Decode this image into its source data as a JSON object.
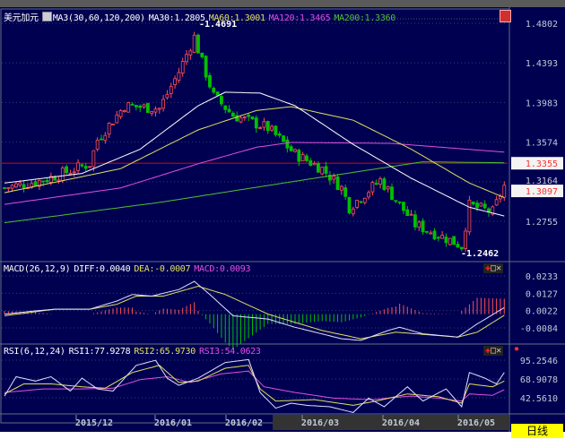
{
  "symbol": "美元加元",
  "ma_header": {
    "label": "MA3(30,60,120,200)",
    "ma30": "MA30:1.2805",
    "ma60": "MA60:1.3001",
    "ma120": "MA120:1.3465",
    "ma200": "MA200:1.3360"
  },
  "macd_header": {
    "label": "MACD(26,12,9)",
    "diff": "DIFF:0.0040",
    "dea": "DEA:-0.0007",
    "macd": "MACD:0.0093"
  },
  "rsi_header": {
    "label": "RSI(6,12,24)",
    "rsi1": "RSI1:77.9278",
    "rsi2": "RSI2:65.9730",
    "rsi3": "RSI3:54.0623"
  },
  "price_axis": [
    "1.4802",
    "1.4393",
    "1.3983",
    "1.3574",
    "1.3164",
    "1.2755"
  ],
  "price_ticks": [
    1.4802,
    1.4393,
    1.3983,
    1.3574,
    1.3164,
    1.2755
  ],
  "price_tags": {
    "reference": "1.3355",
    "last": "1.3097"
  },
  "high_label": "1.4691",
  "low_label": "1.2462",
  "macd_axis": [
    "0.0233",
    "0.0127",
    "0.0022",
    "-0.0084"
  ],
  "macd_ticks": [
    0.0233,
    0.0127,
    0.0022,
    -0.0084
  ],
  "rsi_axis": [
    "95.2546",
    "68.9078",
    "42.5610"
  ],
  "rsi_ticks": [
    95.2546,
    68.9078,
    42.561
  ],
  "date_labels": [
    "2015/12",
    "2016/01",
    "2016/02",
    "2016/03",
    "2016/04",
    "2016/05"
  ],
  "timeframe": "日线",
  "colors": {
    "up": "#ff5050",
    "down": "#00c000",
    "ma30": "#ffffff",
    "ma60": "#e0e060",
    "ma120": "#e050e0",
    "ma200": "#50c030",
    "reference_line": "#c00000"
  },
  "chart_data": {
    "type": "candlestick",
    "bars": 130,
    "price_path": [
      [
        0,
        1.31
      ],
      [
        10,
        1.318
      ],
      [
        22,
        1.335
      ],
      [
        24,
        1.36
      ],
      [
        31,
        1.395
      ],
      [
        40,
        1.392
      ],
      [
        45,
        1.43
      ],
      [
        49,
        1.466
      ],
      [
        51,
        1.44
      ],
      [
        54,
        1.405
      ],
      [
        59,
        1.385
      ],
      [
        68,
        1.372
      ],
      [
        75,
        1.345
      ],
      [
        82,
        1.33
      ],
      [
        87,
        1.31
      ],
      [
        89,
        1.29
      ],
      [
        97,
        1.318
      ],
      [
        106,
        1.272
      ],
      [
        115,
        1.256
      ],
      [
        118,
        1.25
      ],
      [
        120,
        1.292
      ],
      [
        126,
        1.285
      ],
      [
        129,
        1.312
      ]
    ],
    "ma30": [
      [
        0,
        1.315
      ],
      [
        20,
        1.325
      ],
      [
        35,
        1.35
      ],
      [
        50,
        1.395
      ],
      [
        57,
        1.409
      ],
      [
        66,
        1.408
      ],
      [
        75,
        1.395
      ],
      [
        90,
        1.355
      ],
      [
        105,
        1.32
      ],
      [
        120,
        1.29
      ],
      [
        129,
        1.281
      ]
    ],
    "ma60": [
      [
        0,
        1.305
      ],
      [
        30,
        1.33
      ],
      [
        50,
        1.37
      ],
      [
        65,
        1.39
      ],
      [
        74,
        1.394
      ],
      [
        90,
        1.38
      ],
      [
        105,
        1.35
      ],
      [
        120,
        1.315
      ],
      [
        129,
        1.3
      ]
    ],
    "ma120": [
      [
        0,
        1.293
      ],
      [
        30,
        1.31
      ],
      [
        50,
        1.335
      ],
      [
        65,
        1.352
      ],
      [
        74,
        1.357
      ],
      [
        100,
        1.356
      ],
      [
        129,
        1.347
      ]
    ],
    "ma200": [
      [
        0,
        1.274
      ],
      [
        40,
        1.295
      ],
      [
        80,
        1.32
      ],
      [
        108,
        1.337
      ],
      [
        129,
        1.336
      ]
    ],
    "macd_diff": [
      [
        0,
        0.0
      ],
      [
        8,
        0.002
      ],
      [
        13,
        0.003
      ],
      [
        22,
        0.003
      ],
      [
        29,
        0.008
      ],
      [
        33,
        0.012
      ],
      [
        38,
        0.011
      ],
      [
        45,
        0.015
      ],
      [
        49,
        0.02
      ],
      [
        53,
        0.012
      ],
      [
        59,
        -0.001
      ],
      [
        68,
        -0.003
      ],
      [
        75,
        -0.008
      ],
      [
        87,
        -0.015
      ],
      [
        92,
        -0.016
      ],
      [
        99,
        -0.01
      ],
      [
        102,
        -0.008
      ],
      [
        108,
        -0.012
      ],
      [
        117,
        -0.014
      ],
      [
        122,
        -0.006
      ],
      [
        129,
        0.004
      ]
    ],
    "macd_dea": [
      [
        0,
        -0.001
      ],
      [
        13,
        0.003
      ],
      [
        22,
        0.003
      ],
      [
        29,
        0.006
      ],
      [
        34,
        0.011
      ],
      [
        41,
        0.011
      ],
      [
        50,
        0.017
      ],
      [
        57,
        0.012
      ],
      [
        68,
        0.0
      ],
      [
        82,
        -0.01
      ],
      [
        92,
        -0.015
      ],
      [
        101,
        -0.011
      ],
      [
        117,
        -0.014
      ],
      [
        122,
        -0.011
      ],
      [
        129,
        -0.0007
      ]
    ],
    "rsi1": [
      [
        0,
        45
      ],
      [
        3,
        72
      ],
      [
        8,
        66
      ],
      [
        12,
        72
      ],
      [
        17,
        52
      ],
      [
        20,
        70
      ],
      [
        24,
        55
      ],
      [
        28,
        52
      ],
      [
        34,
        88
      ],
      [
        39,
        95
      ],
      [
        42,
        70
      ],
      [
        45,
        60
      ],
      [
        50,
        70
      ],
      [
        57,
        92
      ],
      [
        63,
        96
      ],
      [
        66,
        50
      ],
      [
        70,
        28
      ],
      [
        74,
        35
      ],
      [
        78,
        32
      ],
      [
        84,
        30
      ],
      [
        90,
        22
      ],
      [
        94,
        42
      ],
      [
        98,
        30
      ],
      [
        104,
        58
      ],
      [
        108,
        38
      ],
      [
        114,
        55
      ],
      [
        118,
        30
      ],
      [
        120,
        78
      ],
      [
        124,
        70
      ],
      [
        127,
        62
      ],
      [
        129,
        78
      ]
    ],
    "rsi2": [
      [
        0,
        48
      ],
      [
        5,
        62
      ],
      [
        12,
        62
      ],
      [
        20,
        58
      ],
      [
        26,
        56
      ],
      [
        33,
        78
      ],
      [
        40,
        88
      ],
      [
        45,
        64
      ],
      [
        50,
        66
      ],
      [
        57,
        84
      ],
      [
        63,
        88
      ],
      [
        66,
        55
      ],
      [
        70,
        38
      ],
      [
        80,
        40
      ],
      [
        90,
        32
      ],
      [
        96,
        38
      ],
      [
        104,
        48
      ],
      [
        112,
        44
      ],
      [
        118,
        35
      ],
      [
        120,
        62
      ],
      [
        126,
        58
      ],
      [
        129,
        66
      ]
    ],
    "rsi3": [
      [
        0,
        50
      ],
      [
        10,
        55
      ],
      [
        20,
        55
      ],
      [
        28,
        56
      ],
      [
        35,
        68
      ],
      [
        42,
        72
      ],
      [
        48,
        64
      ],
      [
        56,
        76
      ],
      [
        63,
        80
      ],
      [
        67,
        58
      ],
      [
        75,
        50
      ],
      [
        85,
        42
      ],
      [
        95,
        40
      ],
      [
        105,
        45
      ],
      [
        112,
        42
      ],
      [
        118,
        38
      ],
      [
        120,
        48
      ],
      [
        126,
        46
      ],
      [
        129,
        54
      ]
    ]
  }
}
